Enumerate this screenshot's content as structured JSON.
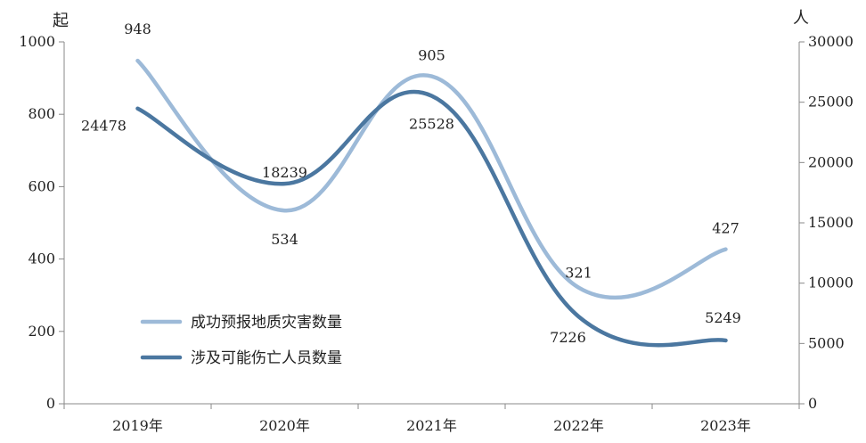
{
  "chart_data": {
    "type": "line",
    "categories": [
      "2019年",
      "2020年",
      "2021年",
      "2022年",
      "2023年"
    ],
    "y_left": {
      "unit": "起",
      "range": [
        0,
        1000
      ],
      "ticks": [
        "0",
        "200",
        "400",
        "600",
        "800",
        "1000"
      ]
    },
    "y_right": {
      "unit": "人",
      "range": [
        0,
        30000
      ],
      "ticks": [
        "0",
        "5000",
        "10000",
        "15000",
        "20000",
        "25000",
        "30000"
      ]
    },
    "series": [
      {
        "name": "成功预报地质灾害数量",
        "axis": "left",
        "color": "#9dbad8",
        "values": [
          948,
          534,
          905,
          321,
          427
        ],
        "labels": [
          "948",
          "534",
          "905",
          "321",
          "427"
        ]
      },
      {
        "name": "涉及可能伤亡人员数量",
        "axis": "right",
        "color": "#4b77a0",
        "values": [
          24478,
          18239,
          25528,
          7226,
          5249
        ],
        "labels": [
          "24478",
          "18239",
          "25528",
          "7226",
          "5249"
        ]
      }
    ],
    "grid": false,
    "legend_position": "bottom-left"
  }
}
